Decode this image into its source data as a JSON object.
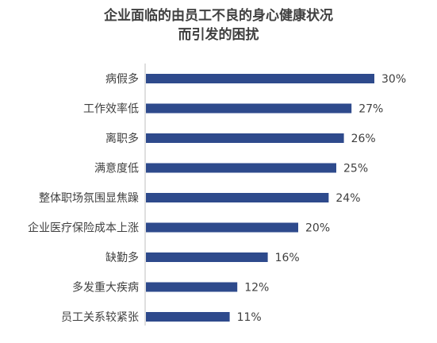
{
  "chart_data": {
    "type": "bar",
    "orientation": "horizontal",
    "title_lines": [
      "企业面临的由员工不良的身心健康状况",
      "而引发的困扰"
    ],
    "categories": [
      "病假多",
      "工作效率低",
      "离职多",
      "满意度低",
      "整体职场氛围显焦躁",
      "企业医疗保险成本上涨",
      "缺勤多",
      "多发重大疾病",
      "员工关系较紧张"
    ],
    "values": [
      30,
      27,
      26,
      25,
      24,
      20,
      16,
      12,
      11
    ],
    "value_labels": [
      "30%",
      "27%",
      "26%",
      "25%",
      "24%",
      "20%",
      "16%",
      "12%",
      "11%"
    ],
    "xlim": [
      0,
      30
    ],
    "bar_color": "#2E4A8C",
    "grid": false,
    "legend": "none"
  }
}
